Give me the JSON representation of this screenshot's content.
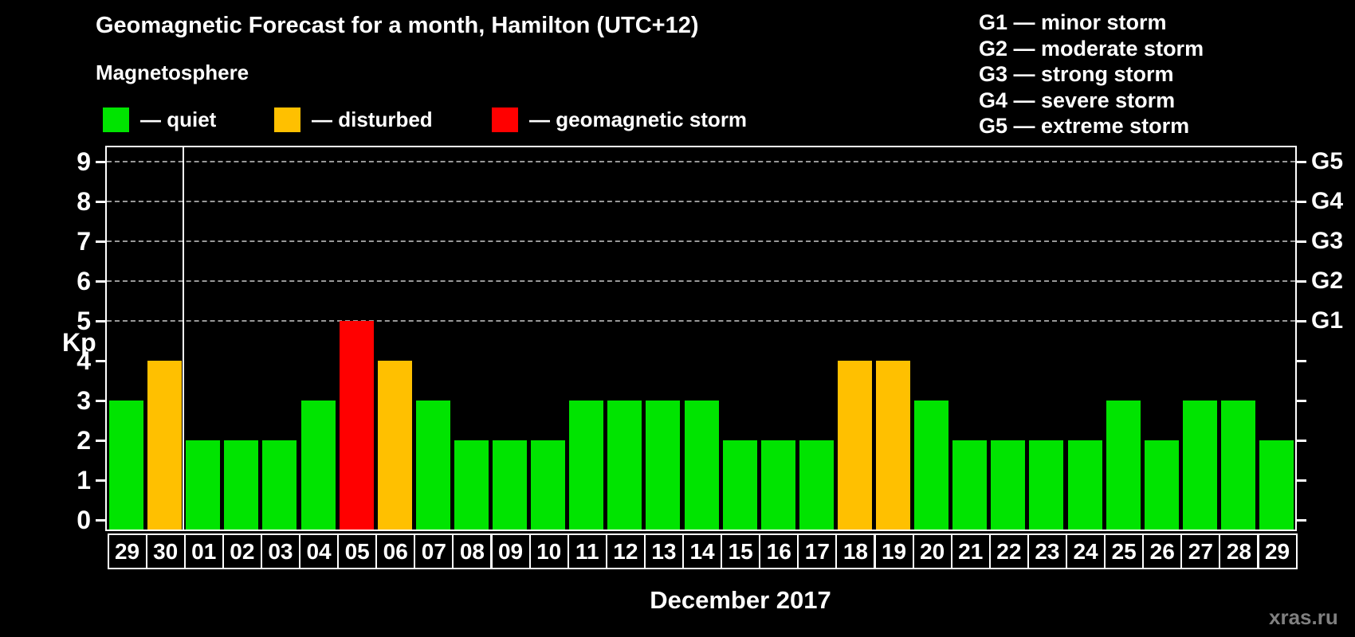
{
  "header": {
    "title": "Geomagnetic Forecast for a month, Hamilton (UTC+12)",
    "subtitle": "Magnetosphere"
  },
  "legend": {
    "items": [
      {
        "key": "quiet",
        "label": "— quiet"
      },
      {
        "key": "disturbed",
        "label": "— disturbed"
      },
      {
        "key": "storm",
        "label": "— geomagnetic storm"
      }
    ]
  },
  "g_legend": {
    "lines": [
      "G1 — minor storm",
      "G2 — moderate storm",
      "G3 — strong storm",
      "G4 — severe storm",
      "G5 — extreme storm"
    ]
  },
  "chart_data": {
    "type": "bar",
    "title": "Geomagnetic Forecast for a month, Hamilton (UTC+12)",
    "ylabel": "Kp",
    "xlabel": "December 2017",
    "ylim": [
      0,
      9.4
    ],
    "yticks": [
      0,
      1,
      2,
      3,
      4,
      5,
      6,
      7,
      8,
      9
    ],
    "grid": "dashed horizontal gridlines at Kp 5 through 9",
    "legend_position": "top-left",
    "colors": {
      "quiet": "#00e400",
      "disturbed": "#ffc000",
      "storm": "#ff0000",
      "gridline": "#999999",
      "axis": "#ffffff"
    },
    "right_axis": [
      {
        "label": "G1",
        "kp": 5
      },
      {
        "label": "G2",
        "kp": 6
      },
      {
        "label": "G3",
        "kp": 7
      },
      {
        "label": "G4",
        "kp": 8
      },
      {
        "label": "G5",
        "kp": 9
      }
    ],
    "month_separator_before_index": 2,
    "categories": [
      "29",
      "30",
      "01",
      "02",
      "03",
      "04",
      "05",
      "06",
      "07",
      "08",
      "09",
      "10",
      "11",
      "12",
      "13",
      "14",
      "15",
      "16",
      "17",
      "18",
      "19",
      "20",
      "21",
      "22",
      "23",
      "24",
      "25",
      "26",
      "27",
      "28",
      "29"
    ],
    "values": [
      3,
      4,
      2,
      2,
      2,
      3,
      5,
      4,
      3,
      2,
      2,
      2,
      3,
      3,
      3,
      3,
      2,
      2,
      2,
      4,
      4,
      3,
      2,
      2,
      2,
      2,
      3,
      2,
      3,
      3,
      2
    ],
    "bars": [
      {
        "date": "29",
        "kp": 3,
        "status": "quiet"
      },
      {
        "date": "30",
        "kp": 4,
        "status": "disturbed"
      },
      {
        "date": "01",
        "kp": 2,
        "status": "quiet"
      },
      {
        "date": "02",
        "kp": 2,
        "status": "quiet"
      },
      {
        "date": "03",
        "kp": 2,
        "status": "quiet"
      },
      {
        "date": "04",
        "kp": 3,
        "status": "quiet"
      },
      {
        "date": "05",
        "kp": 5,
        "status": "storm"
      },
      {
        "date": "06",
        "kp": 4,
        "status": "disturbed"
      },
      {
        "date": "07",
        "kp": 3,
        "status": "quiet"
      },
      {
        "date": "08",
        "kp": 2,
        "status": "quiet"
      },
      {
        "date": "09",
        "kp": 2,
        "status": "quiet"
      },
      {
        "date": "10",
        "kp": 2,
        "status": "quiet"
      },
      {
        "date": "11",
        "kp": 3,
        "status": "quiet"
      },
      {
        "date": "12",
        "kp": 3,
        "status": "quiet"
      },
      {
        "date": "13",
        "kp": 3,
        "status": "quiet"
      },
      {
        "date": "14",
        "kp": 3,
        "status": "quiet"
      },
      {
        "date": "15",
        "kp": 2,
        "status": "quiet"
      },
      {
        "date": "16",
        "kp": 2,
        "status": "quiet"
      },
      {
        "date": "17",
        "kp": 2,
        "status": "quiet"
      },
      {
        "date": "18",
        "kp": 4,
        "status": "disturbed"
      },
      {
        "date": "19",
        "kp": 4,
        "status": "disturbed"
      },
      {
        "date": "20",
        "kp": 3,
        "status": "quiet"
      },
      {
        "date": "21",
        "kp": 2,
        "status": "quiet"
      },
      {
        "date": "22",
        "kp": 2,
        "status": "quiet"
      },
      {
        "date": "23",
        "kp": 2,
        "status": "quiet"
      },
      {
        "date": "24",
        "kp": 2,
        "status": "quiet"
      },
      {
        "date": "25",
        "kp": 3,
        "status": "quiet"
      },
      {
        "date": "26",
        "kp": 2,
        "status": "quiet"
      },
      {
        "date": "27",
        "kp": 3,
        "status": "quiet"
      },
      {
        "date": "28",
        "kp": 3,
        "status": "quiet"
      },
      {
        "date": "29",
        "kp": 2,
        "status": "quiet"
      }
    ]
  },
  "watermark": "xras.ru"
}
